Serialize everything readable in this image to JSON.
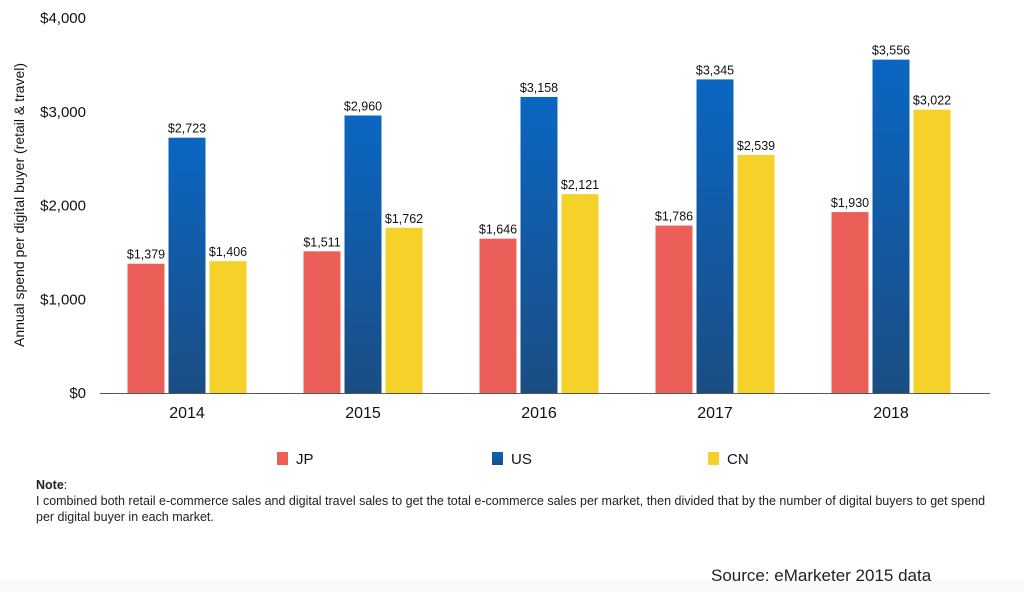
{
  "chart_data": {
    "type": "bar",
    "title": "",
    "xlabel": "",
    "ylabel": "Annual spend per digital buyer (retail & travel)",
    "ylim": [
      0,
      4000
    ],
    "yticks": [
      0,
      1000,
      2000,
      3000,
      4000
    ],
    "ytick_labels": [
      "$0",
      "$1,000",
      "$2,000",
      "$3,000",
      "$4,000"
    ],
    "categories": [
      "2014",
      "2015",
      "2016",
      "2017",
      "2018"
    ],
    "grid": false,
    "legend_position": "bottom",
    "series": [
      {
        "name": "JP",
        "color": "#ec5f59",
        "values": [
          1379,
          1511,
          1646,
          1786,
          1930
        ],
        "labels": [
          "$1,379",
          "$1,511",
          "$1,646",
          "$1,786",
          "$1,930"
        ]
      },
      {
        "name": "US",
        "color": "#0a66c2",
        "color_bottom": "#1b4d84",
        "values": [
          2723,
          2960,
          3158,
          3345,
          3556
        ],
        "labels": [
          "$2,723",
          "$2,960",
          "$3,158",
          "$3,345",
          "$3,556"
        ]
      },
      {
        "name": "CN",
        "color": "#f4d22a",
        "values": [
          1406,
          1762,
          2121,
          2539,
          3022
        ],
        "labels": [
          "$1,406",
          "$1,762",
          "$2,121",
          "$2,539",
          "$3,022"
        ]
      }
    ]
  },
  "note": {
    "heading": "Note",
    "text": "I combined both retail e-commerce sales and digital travel sales to get the total e-commerce sales per market, then divided that by the number of digital buyers to get spend per digital buyer in each market."
  },
  "source": "Source: eMarketer 2015 data"
}
